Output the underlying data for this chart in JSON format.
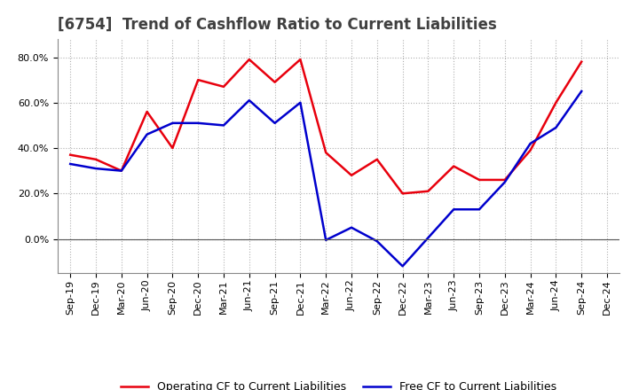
{
  "title": "[6754]  Trend of Cashflow Ratio to Current Liabilities",
  "x_labels": [
    "Sep-19",
    "Dec-19",
    "Mar-20",
    "Jun-20",
    "Sep-20",
    "Dec-20",
    "Mar-21",
    "Jun-21",
    "Sep-21",
    "Dec-21",
    "Mar-22",
    "Jun-22",
    "Sep-22",
    "Dec-22",
    "Mar-23",
    "Jun-23",
    "Sep-23",
    "Dec-23",
    "Mar-24",
    "Jun-24",
    "Sep-24",
    "Dec-24"
  ],
  "operating_cf": [
    0.37,
    0.35,
    0.3,
    0.56,
    0.4,
    0.7,
    0.67,
    0.79,
    0.69,
    0.79,
    0.38,
    0.28,
    0.35,
    0.2,
    0.21,
    0.32,
    0.26,
    0.26,
    0.39,
    0.6,
    0.78,
    null
  ],
  "free_cf": [
    0.33,
    0.31,
    0.3,
    0.46,
    0.51,
    0.51,
    0.5,
    0.61,
    0.51,
    0.6,
    -0.005,
    0.05,
    -0.01,
    -0.12,
    0.005,
    0.13,
    0.13,
    0.25,
    0.42,
    0.49,
    0.65,
    null
  ],
  "operating_cf_color": "#e8000d",
  "free_cf_color": "#0000cd",
  "background_color": "#ffffff",
  "plot_bg_color": "#ffffff",
  "grid_color": "#b0b0b0",
  "ylim": [
    -0.15,
    0.88
  ],
  "yticks": [
    0.0,
    0.2,
    0.4,
    0.6,
    0.8
  ],
  "legend_labels": [
    "Operating CF to Current Liabilities",
    "Free CF to Current Liabilities"
  ],
  "title_color": "#404040",
  "title_fontsize": 12,
  "tick_fontsize": 8
}
